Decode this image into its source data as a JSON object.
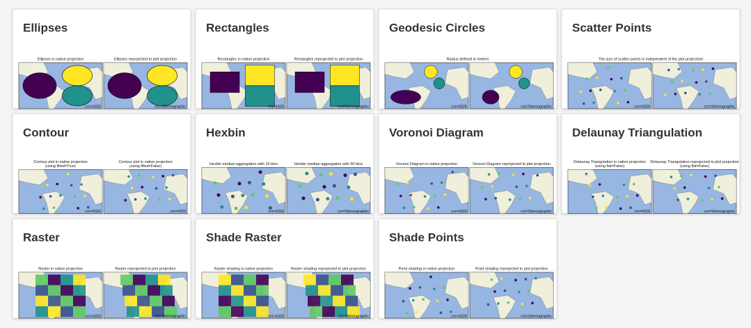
{
  "cards": [
    {
      "title": "Ellipses",
      "captions": [
        [
          "Ellipses in native projection"
        ],
        [
          "Ellipses reprojected to plot projection"
        ]
      ],
      "crs": [
        "crs=4326",
        "crs=Stereographic"
      ]
    },
    {
      "title": "Rectangles",
      "captions": [
        [
          "Rectangles in native projection"
        ],
        [
          "Rectangles reprojected to plot projection"
        ]
      ],
      "crs": [
        "crs=4326",
        "crs=Stereographic"
      ]
    },
    {
      "title": "Geodesic Circles",
      "captions": [
        [
          "Radius defined in meters"
        ]
      ],
      "crs": [
        "crs=4326",
        "crs=Stereographic"
      ]
    },
    {
      "title": "Scatter Points",
      "captions": [
        [
          "The size of scatter points is independent of the plot projection!"
        ]
      ],
      "crs": [
        "crs=4326",
        "crs=Stereographic"
      ]
    },
    {
      "title": "Contour",
      "captions": [
        [
          "Contour plot in native projection",
          "(using filled=True)"
        ],
        [
          "Contour plot in native projection",
          "(using filled=False)"
        ]
      ],
      "crs": [
        "crs=4326",
        "crs=4326"
      ]
    },
    {
      "title": "Hexbin",
      "captions": [
        [
          "Hexbin median-aggregation with 15 bins"
        ],
        [
          "Hexbin median-aggregation with 50 bins"
        ]
      ],
      "crs": [
        "crs=4326",
        "crs=Stereographic"
      ]
    },
    {
      "title": "Voronoi Diagram",
      "captions": [
        [
          "Voronoi Diagram in native projection"
        ],
        [
          "Voronoi Diagram reprojected to plot projection"
        ]
      ],
      "crs": [
        "crs=4326",
        "crs=Stereographic"
      ]
    },
    {
      "title": "Delaunay Triangulation",
      "captions": [
        [
          "Delaunay Triangulation in native projection",
          "(using flat=False)"
        ],
        [
          "Delaunay Triangulation reprojected to plot projection",
          "(using flat=False)"
        ]
      ],
      "crs": [
        "crs=4326",
        "crs=Stereographic"
      ]
    },
    {
      "title": "Raster",
      "captions": [
        [
          "Raster in native projection"
        ],
        [
          "Raster reprojected to plot projection"
        ]
      ],
      "crs": [
        "crs=4326",
        "crs=Stereographic"
      ]
    },
    {
      "title": "Shade Raster",
      "captions": [
        [
          "Raster shading in native projection"
        ],
        [
          "Raster shading reprojected to plot projection"
        ]
      ],
      "crs": [
        "crs=4326",
        "crs=Stereographic"
      ]
    },
    {
      "title": "Shade Points",
      "captions": [
        [
          "Point shading in native projection"
        ],
        [
          "Point shading reprojected to plot projection"
        ]
      ],
      "crs": [
        "crs=4326",
        "crs=Stereographic"
      ]
    }
  ]
}
